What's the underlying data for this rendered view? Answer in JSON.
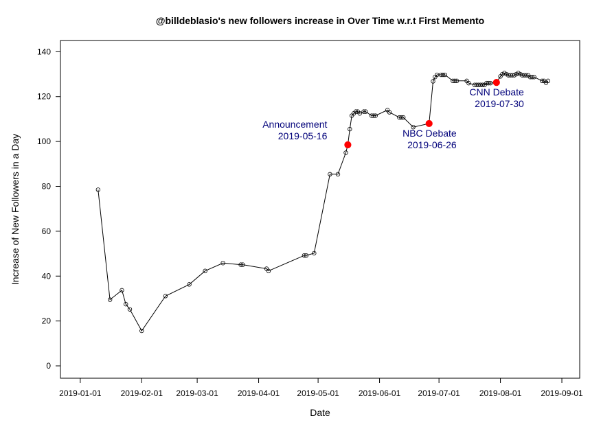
{
  "chart_data": {
    "type": "line",
    "title": "@billdeblasio's new followers increase in Over Time w.r.t First Memento",
    "xlabel": "Date",
    "ylabel": "Increase of New Followers in a Day",
    "xlim": [
      "2018-12-22",
      "2019-09-10"
    ],
    "ylim": [
      -5.5,
      145
    ],
    "x_ticks": [
      "2019-01-01",
      "2019-02-01",
      "2019-03-01",
      "2019-04-01",
      "2019-05-01",
      "2019-06-01",
      "2019-07-01",
      "2019-08-01",
      "2019-09-01"
    ],
    "y_ticks": [
      0,
      20,
      40,
      60,
      80,
      100,
      120,
      140
    ],
    "grid": false,
    "colors": {
      "line": "#000000",
      "highlight": "#ff0000",
      "annotation": "#00007a"
    },
    "series": [
      {
        "points": [
          {
            "x": "2019-01-10",
            "y": 78.5
          },
          {
            "x": "2019-01-16",
            "y": 29.5
          },
          {
            "x": "2019-01-22",
            "y": 33.7
          },
          {
            "x": "2019-01-24",
            "y": 27.5
          },
          {
            "x": "2019-01-26",
            "y": 25.2
          },
          {
            "x": "2019-02-01",
            "y": 15.6
          },
          {
            "x": "2019-02-13",
            "y": 31.1
          },
          {
            "x": "2019-02-25",
            "y": 36.3
          },
          {
            "x": "2019-03-05",
            "y": 42.3
          },
          {
            "x": "2019-03-14",
            "y": 45.8
          },
          {
            "x": "2019-03-23",
            "y": 45.1
          },
          {
            "x": "2019-03-24",
            "y": 45.1
          },
          {
            "x": "2019-04-05",
            "y": 43.3
          },
          {
            "x": "2019-04-06",
            "y": 42.3
          },
          {
            "x": "2019-04-24",
            "y": 49.2
          },
          {
            "x": "2019-04-25",
            "y": 49.2
          },
          {
            "x": "2019-04-29",
            "y": 50.2
          },
          {
            "x": "2019-05-07",
            "y": 85.4
          },
          {
            "x": "2019-05-11",
            "y": 85.4
          },
          {
            "x": "2019-05-15",
            "y": 95.0
          },
          {
            "x": "2019-05-16",
            "y": 98.5
          },
          {
            "x": "2019-05-17",
            "y": 105.5
          },
          {
            "x": "2019-05-18",
            "y": 111.5
          },
          {
            "x": "2019-05-19",
            "y": 112.5
          },
          {
            "x": "2019-05-20",
            "y": 113.3
          },
          {
            "x": "2019-05-21",
            "y": 113.3
          },
          {
            "x": "2019-05-22",
            "y": 112.5
          },
          {
            "x": "2019-05-24",
            "y": 113.3
          },
          {
            "x": "2019-05-25",
            "y": 113.3
          },
          {
            "x": "2019-05-28",
            "y": 111.5
          },
          {
            "x": "2019-05-29",
            "y": 111.5
          },
          {
            "x": "2019-05-30",
            "y": 111.5
          },
          {
            "x": "2019-06-05",
            "y": 114.0
          },
          {
            "x": "2019-06-06",
            "y": 113.0
          },
          {
            "x": "2019-06-11",
            "y": 110.7
          },
          {
            "x": "2019-06-12",
            "y": 110.7
          },
          {
            "x": "2019-06-13",
            "y": 110.7
          },
          {
            "x": "2019-06-18",
            "y": 106.4
          },
          {
            "x": "2019-06-26",
            "y": 108.0
          },
          {
            "x": "2019-06-28",
            "y": 126.8
          },
          {
            "x": "2019-06-29",
            "y": 128.7
          },
          {
            "x": "2019-06-30",
            "y": 129.7
          },
          {
            "x": "2019-07-02",
            "y": 129.7
          },
          {
            "x": "2019-07-03",
            "y": 129.7
          },
          {
            "x": "2019-07-04",
            "y": 129.7
          },
          {
            "x": "2019-07-08",
            "y": 127.0
          },
          {
            "x": "2019-07-09",
            "y": 127.0
          },
          {
            "x": "2019-07-10",
            "y": 127.0
          },
          {
            "x": "2019-07-15",
            "y": 127.0
          },
          {
            "x": "2019-07-16",
            "y": 126.0
          },
          {
            "x": "2019-07-19",
            "y": 125.2
          },
          {
            "x": "2019-07-20",
            "y": 125.2
          },
          {
            "x": "2019-07-21",
            "y": 125.2
          },
          {
            "x": "2019-07-22",
            "y": 125.2
          },
          {
            "x": "2019-07-23",
            "y": 125.2
          },
          {
            "x": "2019-07-24",
            "y": 125.2
          },
          {
            "x": "2019-07-25",
            "y": 126.0
          },
          {
            "x": "2019-07-26",
            "y": 126.0
          },
          {
            "x": "2019-07-27",
            "y": 126.0
          },
          {
            "x": "2019-07-30",
            "y": 126.3
          },
          {
            "x": "2019-08-01",
            "y": 129.0
          },
          {
            "x": "2019-08-02",
            "y": 130.0
          },
          {
            "x": "2019-08-03",
            "y": 130.5
          },
          {
            "x": "2019-08-04",
            "y": 130.0
          },
          {
            "x": "2019-08-05",
            "y": 129.5
          },
          {
            "x": "2019-08-06",
            "y": 129.5
          },
          {
            "x": "2019-08-07",
            "y": 129.5
          },
          {
            "x": "2019-08-08",
            "y": 129.5
          },
          {
            "x": "2019-08-09",
            "y": 130.0
          },
          {
            "x": "2019-08-10",
            "y": 130.5
          },
          {
            "x": "2019-08-11",
            "y": 130.0
          },
          {
            "x": "2019-08-12",
            "y": 129.5
          },
          {
            "x": "2019-08-13",
            "y": 129.5
          },
          {
            "x": "2019-08-14",
            "y": 129.5
          },
          {
            "x": "2019-08-15",
            "y": 129.5
          },
          {
            "x": "2019-08-16",
            "y": 128.7
          },
          {
            "x": "2019-08-17",
            "y": 128.7
          },
          {
            "x": "2019-08-18",
            "y": 128.7
          },
          {
            "x": "2019-08-22",
            "y": 127.0
          },
          {
            "x": "2019-08-23",
            "y": 127.0
          },
          {
            "x": "2019-08-24",
            "y": 126.2
          },
          {
            "x": "2019-08-25",
            "y": 127.0
          }
        ]
      }
    ],
    "highlights": [
      {
        "x": "2019-05-16",
        "y": 98.5,
        "label": "Announcement",
        "date_text": "2019-05-16",
        "label_side": "left"
      },
      {
        "x": "2019-06-26",
        "y": 108.0,
        "label": "NBC Debate",
        "date_text": "2019-06-26",
        "label_side": "below"
      },
      {
        "x": "2019-07-30",
        "y": 126.3,
        "label": "CNN Debate",
        "date_text": "2019-07-30",
        "label_side": "below"
      }
    ]
  }
}
